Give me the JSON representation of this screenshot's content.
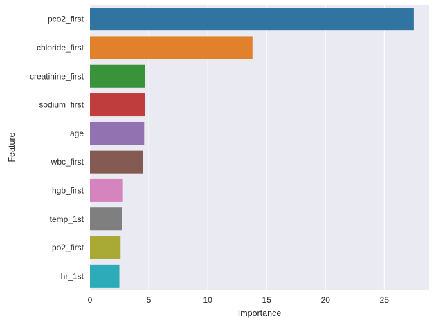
{
  "chart_data": {
    "type": "bar",
    "orientation": "horizontal",
    "xlabel": "Importance",
    "ylabel": "Feature",
    "xlim": [
      0,
      28.8
    ],
    "xticks": [
      0,
      5,
      10,
      15,
      20,
      25
    ],
    "grid": true,
    "background": "#eaeaf2",
    "categories": [
      "pco2_first",
      "chloride_first",
      "creatinine_first",
      "sodium_first",
      "age",
      "wbc_first",
      "hgb_first",
      "temp_1st",
      "po2_first",
      "hr_1st"
    ],
    "values": [
      27.5,
      13.8,
      4.7,
      4.65,
      4.6,
      4.5,
      2.8,
      2.75,
      2.6,
      2.5
    ],
    "colors": [
      "#3274a1",
      "#e1812c",
      "#3a923a",
      "#c03d3e",
      "#9372b2",
      "#845b53",
      "#d684bd",
      "#7f7f7f",
      "#a9aa35",
      "#2eabb8"
    ]
  }
}
